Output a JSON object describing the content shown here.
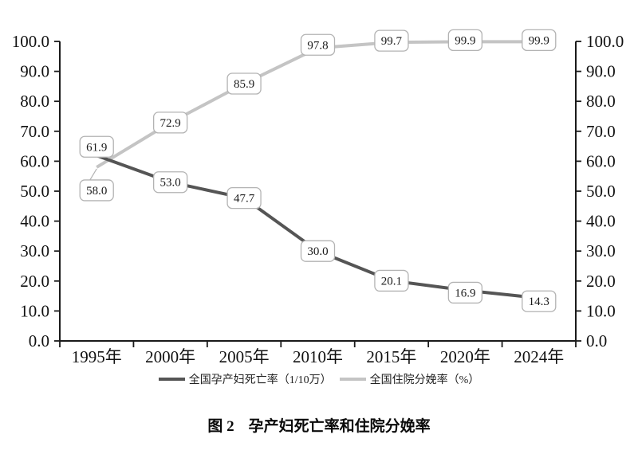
{
  "chart_data": {
    "type": "line",
    "title": "孕产妇死亡率和住院分娩率",
    "categories": [
      "1995年",
      "2000年",
      "2005年",
      "2010年",
      "2015年",
      "2020年",
      "2024年"
    ],
    "series": [
      {
        "name": "全国孕产妇死亡率（1/10万）",
        "axis": "left",
        "color": "#555555",
        "values": [
          61.9,
          53.0,
          47.7,
          30.0,
          20.1,
          16.9,
          14.3
        ]
      },
      {
        "name": "全国住院分娩率（%）",
        "axis": "right",
        "color": "#c4c4c4",
        "values": [
          58.0,
          72.9,
          85.9,
          97.8,
          99.7,
          99.9,
          99.9
        ]
      }
    ],
    "y_axis": {
      "min": 0,
      "max": 100,
      "step": 10,
      "tick_labels": [
        "0.0",
        "10.0",
        "20.0",
        "30.0",
        "40.0",
        "50.0",
        "60.0",
        "70.0",
        "80.0",
        "90.0",
        "100.0"
      ],
      "dual_axis": true
    },
    "grid": false,
    "data_labels": true,
    "label_box": {
      "fill": "#ffffff",
      "border": "#b3b3b3"
    },
    "label_offsets": {
      "0": {
        "0": [
          0,
          -11
        ],
        "5": [
          0,
          3
        ],
        "6": [
          0,
          4
        ]
      },
      "1": {
        "0": [
          0,
          29
        ],
        "3": [
          0,
          -4
        ],
        "4": [
          0,
          -2
        ],
        "5": [
          0,
          -2
        ],
        "6": [
          0,
          -2
        ]
      }
    },
    "label_connectors": [
      {
        "series": 1,
        "point": 0
      }
    ],
    "legend_position": "bottom",
    "axis_color": "#1a1a1a"
  },
  "caption": {
    "figure_label": "图 2",
    "figure_title": "孕产妇死亡率和住院分娩率"
  }
}
